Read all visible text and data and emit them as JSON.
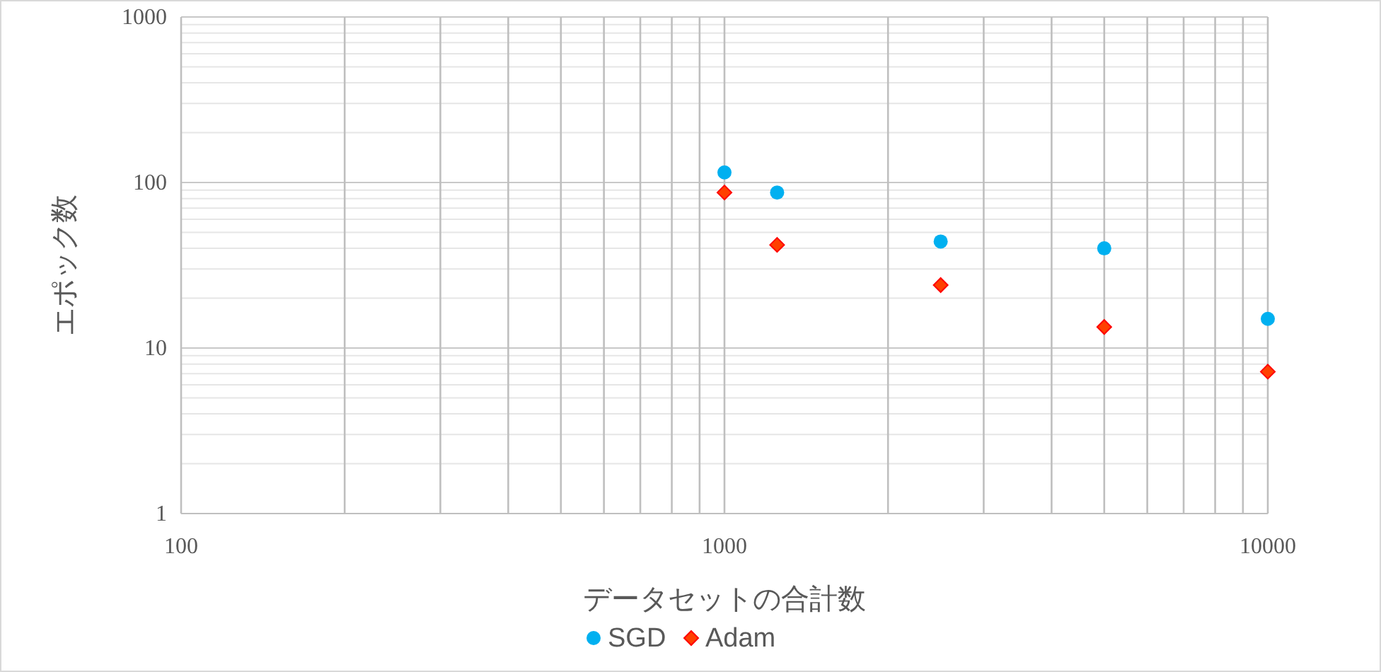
{
  "chart_data": {
    "type": "scatter",
    "xlabel": "データセットの合計数",
    "ylabel": "エポック数",
    "log": "xy",
    "grid": true,
    "legend": "bottom",
    "xlim": [
      100,
      10000
    ],
    "xticks": [
      100,
      1000,
      10000
    ],
    "ylim": [
      1,
      1000
    ],
    "yticks": [
      1,
      10,
      100,
      1000
    ],
    "series": [
      {
        "name": "SGD",
        "color": "#00b0f0",
        "marker": "circle",
        "x": [
          1000,
          1250,
          2500,
          5000,
          10000
        ],
        "values": [
          115,
          87,
          44,
          40,
          15
        ]
      },
      {
        "name": "Adam",
        "color": "#ff4000",
        "marker": "diamond",
        "x": [
          1000,
          1250,
          2500,
          5000,
          10000
        ],
        "values": [
          87,
          42,
          24,
          13.4,
          7.2
        ]
      }
    ]
  }
}
